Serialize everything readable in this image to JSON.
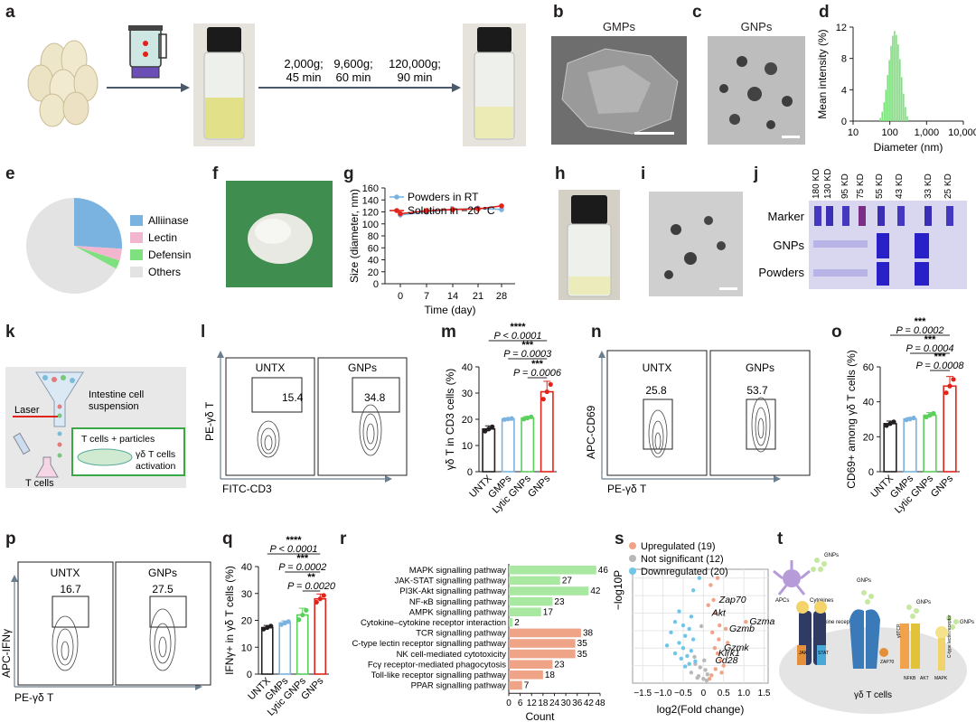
{
  "panels": {
    "a": "a",
    "b": "b",
    "c": "c",
    "d": "d",
    "e": "e",
    "f": "f",
    "g": "g",
    "h": "h",
    "i": "i",
    "j": "j",
    "k": "k",
    "l": "l",
    "m": "m",
    "n": "n",
    "o": "o",
    "p": "p",
    "q": "q",
    "r": "r",
    "s": "s",
    "t": "t"
  },
  "panel_a": {
    "steps": [
      "2,000g;",
      "45 min",
      "9,600g;",
      "60 min",
      "120,000g;",
      "90 min"
    ]
  },
  "panel_b": {
    "title": "GMPs"
  },
  "panel_c": {
    "title": "GNPs"
  },
  "panel_e": {
    "legend": [
      "Alliinase",
      "Lectin",
      "Defensin",
      "Others"
    ]
  },
  "panel_j": {
    "sizes": [
      "180 KD",
      "130 KD",
      "95 KD",
      "75 KD",
      "55 KD",
      "43 KD",
      "33 KD",
      "25 KD"
    ],
    "rows": [
      "Marker",
      "GNPs",
      "Powders"
    ]
  },
  "panel_k": {
    "labels": [
      "Intestine cell",
      "suspension",
      "Laser",
      "T cells + particles",
      "γδ T cells",
      "activation",
      "T cells"
    ]
  },
  "panel_l": {
    "ylabel": "PE-γδ T",
    "xlabel": "FITC-CD3",
    "plots": [
      {
        "title": "UNTX",
        "value": "15.4"
      },
      {
        "title": "GNPs",
        "value": "34.8"
      }
    ]
  },
  "panel_n": {
    "ylabel": "APC-CD69",
    "xlabel": "PE-γδ T",
    "plots": [
      {
        "title": "UNTX",
        "value": "25.8"
      },
      {
        "title": "GNPs",
        "value": "53.7"
      }
    ]
  },
  "panel_p": {
    "ylabel": "APC-IFNγ",
    "xlabel": "PE-γδ T",
    "plots": [
      {
        "title": "UNTX",
        "value": "16.7"
      },
      {
        "title": "GNPs",
        "value": "27.5"
      }
    ]
  },
  "panel_t": {
    "labels": [
      "GNPs",
      "GNPs",
      "GNPs",
      "GNPs",
      "APCs",
      "Cytokines",
      "Cytokine receptor",
      "γδTCR",
      "C-type lectin receptor",
      "γδ T cells",
      "STAT",
      "JAK",
      "ZAP70",
      "NFKB",
      "AKT",
      "MAPK"
    ]
  },
  "colors": {
    "blue": "#7ab3e0",
    "green": "#7ee07e",
    "pink": "#f3b6cf",
    "grey": "#e3e3e3",
    "red": "#e2231a",
    "black": "#231f20",
    "salmon": "#f0a487",
    "lightgreen": "#a8e8a0",
    "purple": "#6b4fb6"
  },
  "chart_data": [
    {
      "id": "d",
      "type": "bar",
      "title": "",
      "xlabel": "Diameter (nm)",
      "ylabel": "Mean intensity (%)",
      "xscale": "log",
      "xlim": [
        10,
        10000
      ],
      "ylim": [
        0,
        12
      ],
      "xticks": [
        10,
        100,
        1000,
        10000
      ],
      "xtick_labels": [
        "10",
        "100",
        "1,000",
        "10,000"
      ],
      "yticks": [
        0,
        4,
        8,
        12
      ],
      "ytick_labels": [
        "0",
        "4",
        "8",
        "12"
      ],
      "x": [
        55,
        62,
        70,
        78,
        87,
        97,
        108,
        120,
        134,
        150,
        168,
        188,
        210,
        236,
        265,
        298
      ],
      "values": [
        0.4,
        1.2,
        2.4,
        4.0,
        5.9,
        7.8,
        9.6,
        10.9,
        11.5,
        11.0,
        9.8,
        7.9,
        5.6,
        3.5,
        1.8,
        0.6
      ],
      "color": "#7ee07e"
    },
    {
      "id": "e",
      "type": "pie",
      "title": "",
      "categories": [
        "Alliinase",
        "Lectin",
        "Defensin",
        "Others"
      ],
      "values": [
        26,
        4,
        3,
        67
      ],
      "colors": [
        "#7ab3e0",
        "#f3b6cf",
        "#7ee07e",
        "#e3e3e3"
      ]
    },
    {
      "id": "g",
      "type": "line",
      "title": "",
      "xlabel": "Time (day)",
      "ylabel": "Size (diameter, nm)",
      "ylim": [
        0,
        160
      ],
      "grid": false,
      "x": [
        0,
        7,
        14,
        21,
        28
      ],
      "xtick_labels": [
        "0",
        "7",
        "14",
        "21",
        "28"
      ],
      "yticks": [
        0,
        20,
        40,
        60,
        80,
        100,
        120,
        140,
        160
      ],
      "ytick_labels": [
        "0",
        "20",
        "40",
        "60",
        "80",
        "100",
        "120",
        "140",
        "160"
      ],
      "legend_position": "top-left",
      "series": [
        {
          "name": "Powders in RT",
          "color": "#7ab3e0",
          "values": [
            115,
            120,
            124,
            126,
            124
          ],
          "err": [
            5,
            5,
            6,
            5,
            5
          ]
        },
        {
          "name": "Solution in −20 °C",
          "color": "#e2231a",
          "values": [
            117,
            122,
            124,
            125,
            130
          ],
          "err": [
            4,
            5,
            5,
            5,
            4
          ]
        }
      ]
    },
    {
      "id": "m",
      "type": "bar",
      "title": "",
      "ylabel": "γδ T in CD3 cells (%)",
      "ylim": [
        0,
        40
      ],
      "yticks": [
        0,
        10,
        20,
        30,
        40
      ],
      "ytick_labels": [
        "0",
        "10",
        "20",
        "30",
        "40"
      ],
      "categories": [
        "UNTX",
        "GMPs",
        "Lytic GNPs",
        "GNPs"
      ],
      "values": [
        16.3,
        20.1,
        20.5,
        30.5
      ],
      "err": [
        1.2,
        0.3,
        0.6,
        4.0
      ],
      "colors": [
        "#231f20",
        "#7ab3e0",
        "#5bcf5b",
        "#e2231a"
      ],
      "annotations": [
        {
          "stars": "****",
          "p": "P < 0.0001"
        },
        {
          "stars": "***",
          "p": "P = 0.0003"
        },
        {
          "stars": "***",
          "p": "P = 0.0006"
        }
      ]
    },
    {
      "id": "o",
      "type": "bar",
      "title": "",
      "ylabel": "CD69+ among γδ T cells (%)",
      "ylim": [
        0,
        60
      ],
      "yticks": [
        0,
        20,
        40,
        60
      ],
      "ytick_labels": [
        "0",
        "20",
        "40",
        "60"
      ],
      "categories": [
        "UNTX",
        "GMPs",
        "Lytic GNPs",
        "GNPs"
      ],
      "values": [
        27.5,
        30.2,
        32.3,
        49.0
      ],
      "err": [
        1.5,
        0.8,
        1.5,
        5.5
      ],
      "colors": [
        "#231f20",
        "#7ab3e0",
        "#5bcf5b",
        "#e2231a"
      ],
      "annotations": [
        {
          "stars": "***",
          "p": "P = 0.0002"
        },
        {
          "stars": "***",
          "p": "P = 0.0004"
        },
        {
          "stars": "***",
          "p": "P = 0.0008"
        }
      ]
    },
    {
      "id": "q",
      "type": "bar",
      "title": "",
      "ylabel": "IFNγ+ in γδ T cells (%)",
      "ylim": [
        0,
        40
      ],
      "yticks": [
        0,
        10,
        20,
        30,
        40
      ],
      "ytick_labels": [
        "0",
        "10",
        "20",
        "30",
        "40"
      ],
      "categories": [
        "UNTX",
        "GMPs",
        "Lytic GNPs",
        "GNPs"
      ],
      "values": [
        17.3,
        19.0,
        22.0,
        28.0
      ],
      "err": [
        0.8,
        0.8,
        2.5,
        1.8
      ],
      "colors": [
        "#231f20",
        "#7ab3e0",
        "#5bcf5b",
        "#e2231a"
      ],
      "annotations": [
        {
          "stars": "****",
          "p": "P < 0.0001"
        },
        {
          "stars": "***",
          "p": "P = 0.0002"
        },
        {
          "stars": "**",
          "p": "P = 0.0020"
        }
      ]
    },
    {
      "id": "r",
      "type": "bar",
      "title": "",
      "xlabel": "Count",
      "xlim": [
        0,
        48
      ],
      "xticks": [
        0,
        6,
        12,
        18,
        24,
        30,
        36,
        42,
        48
      ],
      "xtick_labels": [
        "0",
        "6",
        "12",
        "18",
        "24",
        "30",
        "36",
        "42",
        "48"
      ],
      "categories": [
        "MAPK signalling pathway",
        "JAK-STAT signalling pathway",
        "PI3K-Akt signalling pathway",
        "NF-κB signalling pathway",
        "AMPK signalling pathway",
        "Cytokine–cytokine receptor interaction",
        "TCR signalling pathway",
        "C-type lectin receptor signalling pathway",
        "NK cell-mediated cytotoxicity",
        "Fcγ receptor-mediated phagocytosis",
        "Toll-like receptor signalling pathway",
        "PPAR signalling pathway"
      ],
      "values": [
        46,
        27,
        42,
        23,
        17,
        2,
        38,
        35,
        35,
        23,
        18,
        7
      ],
      "colors": [
        "#a8e8a0",
        "#a8e8a0",
        "#a8e8a0",
        "#a8e8a0",
        "#a8e8a0",
        "#a8e8a0",
        "#f0a487",
        "#f0a487",
        "#f0a487",
        "#f0a487",
        "#f0a487",
        "#f0a487"
      ]
    },
    {
      "id": "s",
      "type": "scatter",
      "title": "",
      "xlabel": "log2(Fold change)",
      "ylabel": "−log10P",
      "xlim": [
        -1.75,
        1.6
      ],
      "xticks": [
        -1.5,
        -1.0,
        -0.5,
        0,
        0.5,
        1.0,
        1.5
      ],
      "xtick_labels": [
        "−1.5",
        "−1.0",
        "−0.5",
        "0",
        "0.5",
        "1.0",
        "1.5"
      ],
      "grid": true,
      "legend_position": "top-left",
      "series": [
        {
          "name": "Upregulated (19)",
          "color": "#f0a487",
          "points": [
            [
              0.35,
              12.0
            ],
            [
              0.18,
              11.2
            ],
            [
              0.25,
              9.5
            ],
            [
              0.12,
              8.9
            ],
            [
              0.3,
              8.0
            ],
            [
              1.05,
              7.0
            ],
            [
              0.4,
              6.6
            ],
            [
              0.55,
              6.2
            ],
            [
              0.22,
              5.8
            ],
            [
              0.38,
              5.0
            ],
            [
              0.6,
              4.6
            ],
            [
              0.28,
              4.0
            ],
            [
              0.35,
              3.4
            ],
            [
              0.42,
              2.6
            ],
            [
              0.5,
              2.0
            ],
            [
              0.3,
              1.6
            ],
            [
              0.45,
              1.2
            ],
            [
              0.2,
              0.9
            ],
            [
              0.15,
              0.5
            ]
          ]
        },
        {
          "name": "Not significant (12)",
          "color": "#b8b8b8",
          "points": [
            [
              -0.2,
              2.2
            ],
            [
              -0.08,
              1.8
            ],
            [
              0.05,
              1.5
            ],
            [
              -0.3,
              1.2
            ],
            [
              0.1,
              1.0
            ],
            [
              -0.12,
              0.8
            ],
            [
              0.0,
              0.5
            ],
            [
              0.08,
              0.3
            ],
            [
              -0.05,
              6.5
            ],
            [
              -0.15,
              0.6
            ],
            [
              0.02,
              2.6
            ],
            [
              -0.22,
              3.0
            ]
          ]
        },
        {
          "name": "Downregulated (20)",
          "color": "#6ec6e8",
          "points": [
            [
              -0.1,
              12.0
            ],
            [
              -0.25,
              10.6
            ],
            [
              -0.6,
              8.2
            ],
            [
              -0.3,
              7.6
            ],
            [
              -0.7,
              7.0
            ],
            [
              -0.5,
              6.6
            ],
            [
              -0.35,
              6.2
            ],
            [
              -0.8,
              5.8
            ],
            [
              -0.45,
              5.4
            ],
            [
              -0.25,
              5.0
            ],
            [
              -0.6,
              4.6
            ],
            [
              -0.9,
              4.3
            ],
            [
              -0.5,
              4.0
            ],
            [
              -0.3,
              3.7
            ],
            [
              -0.7,
              3.4
            ],
            [
              -0.4,
              3.1
            ],
            [
              -0.55,
              2.8
            ],
            [
              -0.2,
              2.5
            ],
            [
              -0.35,
              2.2
            ],
            [
              -0.45,
              1.9
            ]
          ]
        }
      ],
      "labels": [
        {
          "text": "Zap70",
          "x": 0.3,
          "y": 9.5
        },
        {
          "text": "Akt",
          "x": 0.12,
          "y": 8.0
        },
        {
          "text": "Gzma",
          "x": 1.05,
          "y": 7.0
        },
        {
          "text": "Gzmb",
          "x": 0.55,
          "y": 6.2
        },
        {
          "text": "Gzmk",
          "x": 0.42,
          "y": 4.0
        },
        {
          "text": "Klrk1",
          "x": 0.28,
          "y": 3.4
        },
        {
          "text": "Cd28",
          "x": 0.2,
          "y": 2.6
        }
      ]
    }
  ]
}
